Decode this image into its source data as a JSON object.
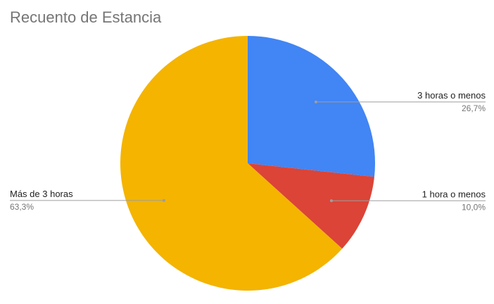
{
  "chart_data": {
    "type": "pie",
    "title": "Recuento de Estancia",
    "slices": [
      {
        "label": "3 horas o menos",
        "value": 26.7,
        "display": "26,7%",
        "color": "#4285F4"
      },
      {
        "label": "1 hora o menos",
        "value": 10.0,
        "display": "10,0%",
        "color": "#DB4437"
      },
      {
        "label": "Más de 3 horas",
        "value": 63.3,
        "display": "63,3%",
        "color": "#F4B400"
      }
    ],
    "start_angle_deg": 0,
    "direction": "clockwise",
    "label_style": "external leader lines"
  }
}
